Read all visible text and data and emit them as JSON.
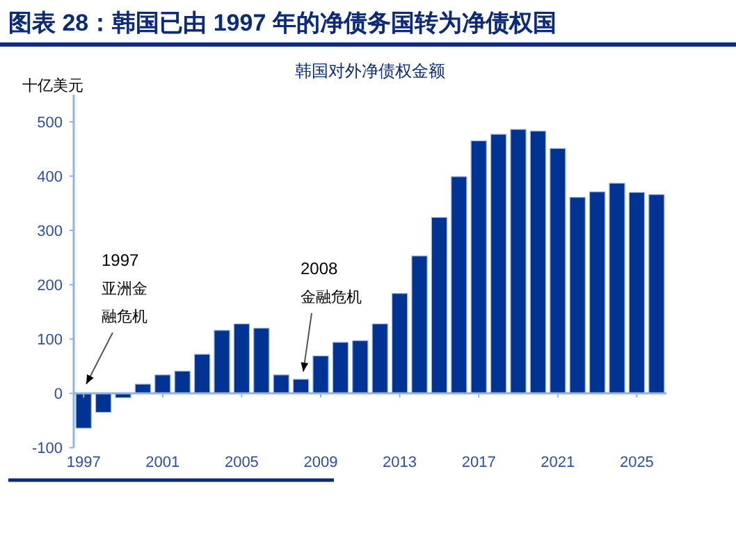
{
  "chart_data": {
    "type": "bar",
    "title": "图表 28：韩国已由 1997 年的净债务国转为净债权国",
    "subtitle": "韩国对外净债权金额",
    "ylabel": "十亿美元",
    "x": [
      1997,
      1998,
      1999,
      2000,
      2001,
      2002,
      2003,
      2004,
      2005,
      2006,
      2007,
      2008,
      2009,
      2010,
      2011,
      2012,
      2013,
      2014,
      2015,
      2016,
      2017,
      2018,
      2019,
      2020,
      2021,
      2022,
      2023,
      2024,
      2025,
      2026
    ],
    "values": [
      -64,
      -35,
      -8,
      17,
      34,
      41,
      72,
      116,
      128,
      120,
      34,
      26,
      69,
      94,
      97,
      128,
      184,
      253,
      324,
      399,
      465,
      477,
      486,
      483,
      451,
      361,
      371,
      387,
      370,
      366
    ],
    "color": "#003393",
    "xlim": [
      1996.5,
      2026.5
    ],
    "xticks": [
      1997,
      2001,
      2005,
      2009,
      2013,
      2017,
      2021,
      2025
    ],
    "ylim": [
      -100,
      550
    ],
    "yticks": [
      -100,
      0,
      100,
      200,
      300,
      400,
      500
    ],
    "grid": false,
    "ref_lines": [
      {
        "axis": "y",
        "value": 0,
        "color": "#8db4e2"
      }
    ],
    "annotations": [
      "1997\n亚洲金融危机",
      "2008\n金融危机"
    ]
  }
}
